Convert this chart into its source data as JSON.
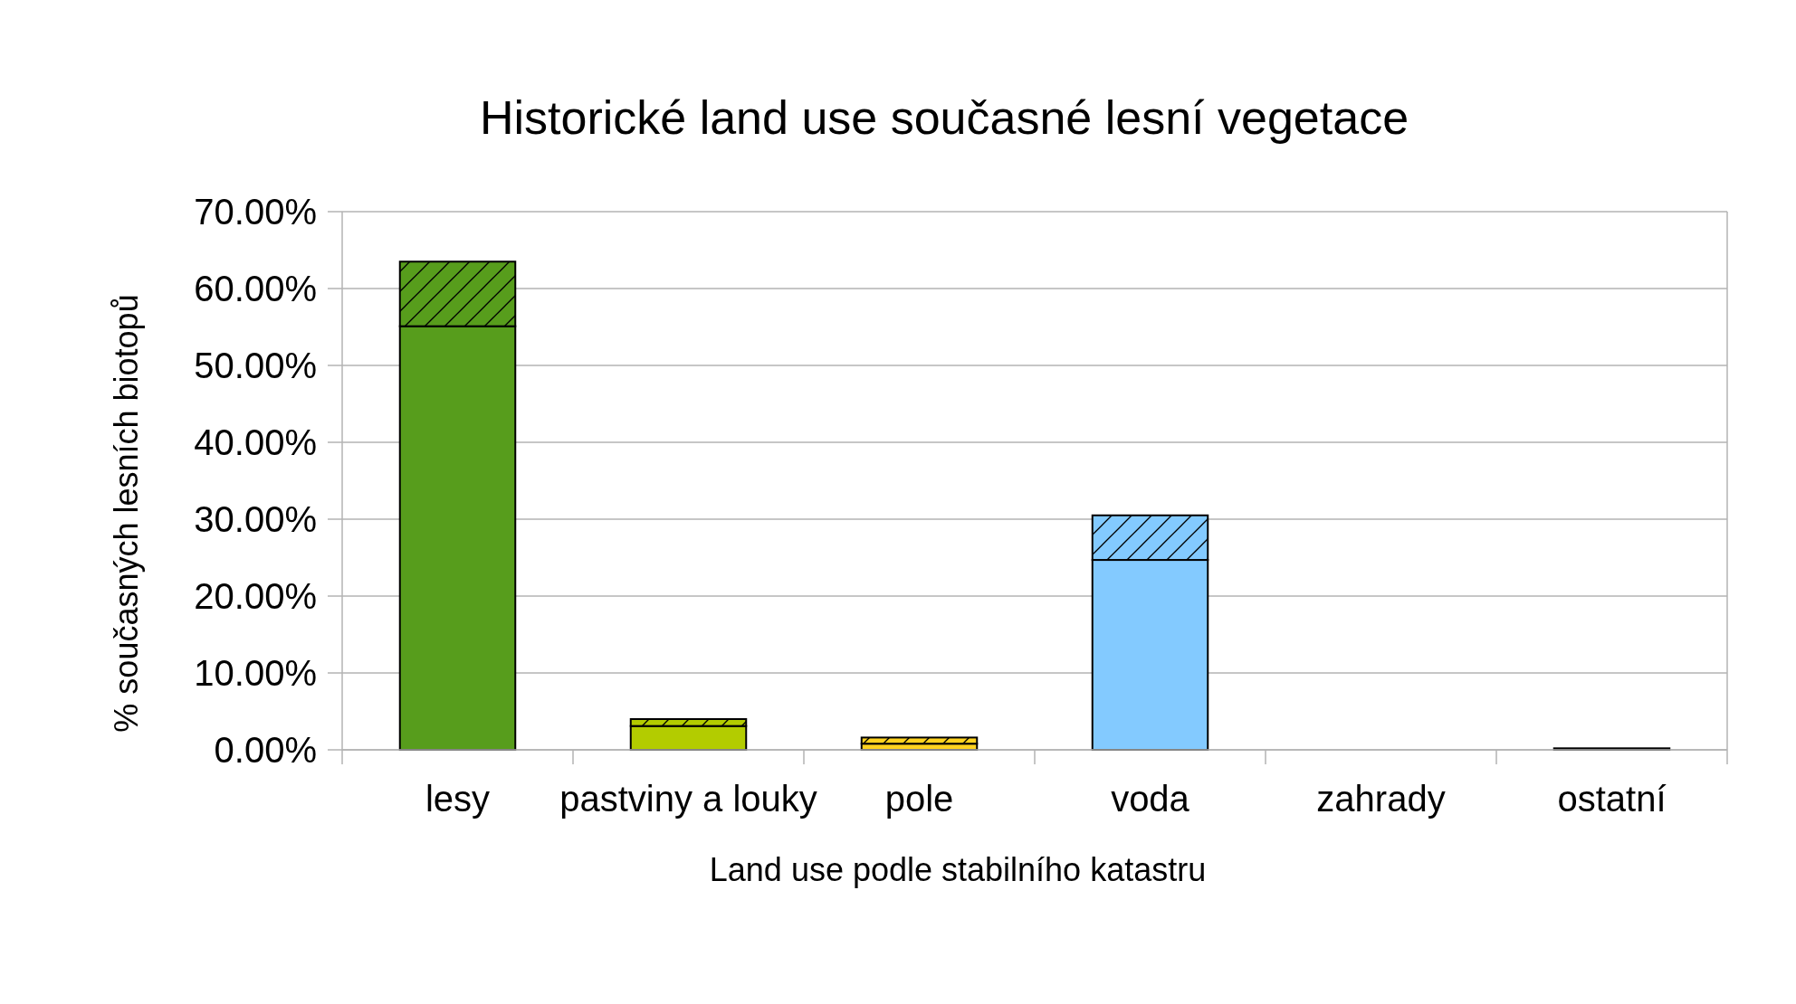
{
  "chart_data": {
    "type": "bar",
    "title": "Historické land use současné lesní vegetace",
    "xlabel": "Land use podle stabilního katastru",
    "ylabel": "% současných lesních biotopů",
    "categories": [
      "lesy",
      "pastviny a louky",
      "pole",
      "voda",
      "zahrady",
      "ostatní"
    ],
    "stacked": true,
    "series": [
      {
        "colors": [
          "#579d1c",
          "#b3cc00",
          "#ffd320",
          "#83caff",
          "#b3cc00",
          "#000000"
        ],
        "values": [
          55.1,
          3.1,
          0.8,
          24.7,
          0,
          0.2
        ]
      },
      {
        "colors": [
          "#579d1c",
          "#b3cc00",
          "#ffd320",
          "#83caff",
          "#b3cc00",
          "#000000"
        ],
        "values": [
          8.4,
          0.9,
          0.8,
          5.8,
          0,
          0
        ]
      }
    ],
    "ylim": [
      0,
      70
    ],
    "yticks": [
      {
        "value": 0,
        "label": "0.00%"
      },
      {
        "value": 10,
        "label": "10.00%"
      },
      {
        "value": 20,
        "label": "20.00%"
      },
      {
        "value": 30,
        "label": "30.00%"
      },
      {
        "value": 40,
        "label": "40.00%"
      },
      {
        "value": 50,
        "label": "50.00%"
      },
      {
        "value": 60,
        "label": "60.00%"
      },
      {
        "value": 70,
        "label": "70.00%"
      }
    ],
    "grid": "y"
  }
}
